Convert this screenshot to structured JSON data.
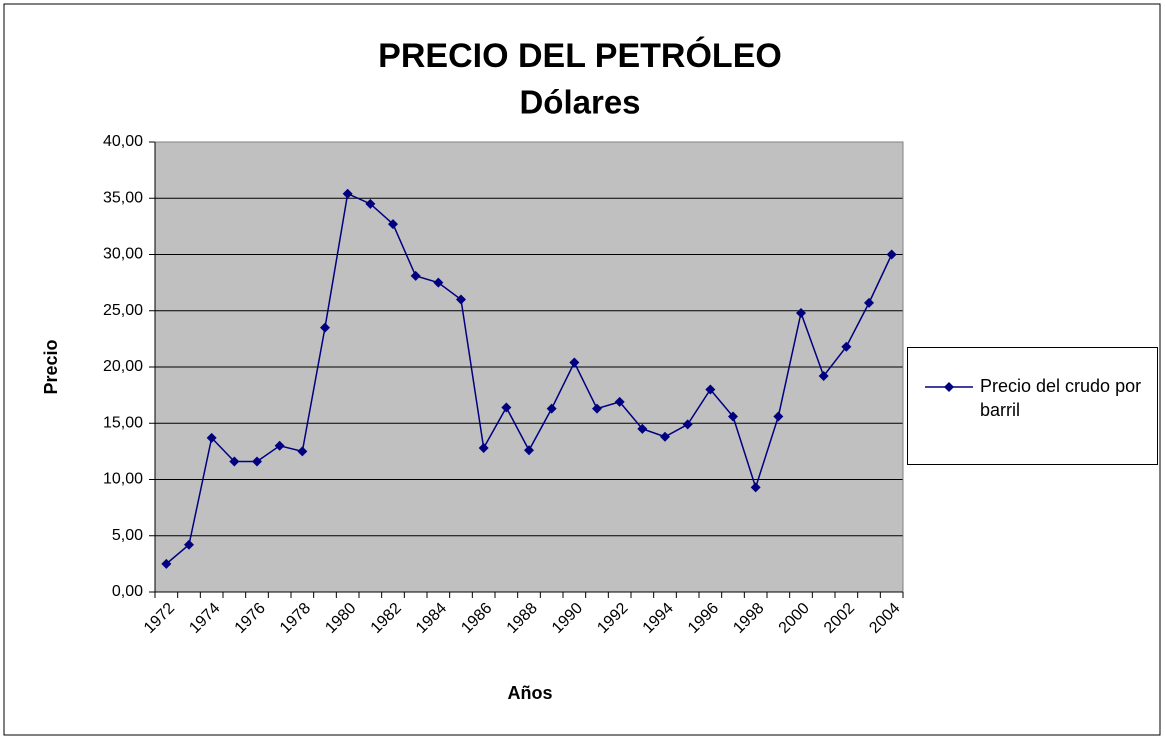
{
  "chart_data": {
    "type": "line",
    "title": "PRECIO DEL PETRÓLEO",
    "subtitle": "Dólares",
    "xlabel": "Años",
    "ylabel": "Precio",
    "categories": [
      "1972",
      null,
      "1974",
      null,
      "1976",
      null,
      "1978",
      null,
      "1980",
      null,
      "1982",
      null,
      "1984",
      null,
      "1986",
      null,
      "1988",
      null,
      "1990",
      null,
      "1992",
      null,
      "1994",
      null,
      "1996",
      null,
      "1998",
      null,
      "2000",
      null,
      "2002",
      null,
      "2004"
    ],
    "series": [
      {
        "name": "Precio del crudo por barril",
        "color": "#000080",
        "values": [
          2.5,
          4.2,
          13.7,
          11.6,
          11.6,
          13.0,
          12.5,
          23.5,
          35.4,
          34.5,
          32.7,
          28.1,
          27.5,
          26.0,
          12.8,
          16.4,
          12.6,
          16.3,
          20.4,
          16.3,
          16.9,
          14.5,
          13.8,
          14.9,
          18.0,
          15.6,
          9.3,
          15.6,
          24.8,
          19.2,
          21.8,
          25.7,
          30.0
        ]
      }
    ],
    "ylim": [
      0,
      40
    ],
    "yticks": [
      {
        "value": 0,
        "label": "0,00"
      },
      {
        "value": 5,
        "label": "5,00"
      },
      {
        "value": 10,
        "label": "10,00"
      },
      {
        "value": 15,
        "label": "15,00"
      },
      {
        "value": 20,
        "label": "20,00"
      },
      {
        "value": 25,
        "label": "25,00"
      },
      {
        "value": 30,
        "label": "30,00"
      },
      {
        "value": 35,
        "label": "35,00"
      },
      {
        "value": 40,
        "label": "40,00"
      }
    ],
    "grid": true,
    "legend": "right"
  }
}
